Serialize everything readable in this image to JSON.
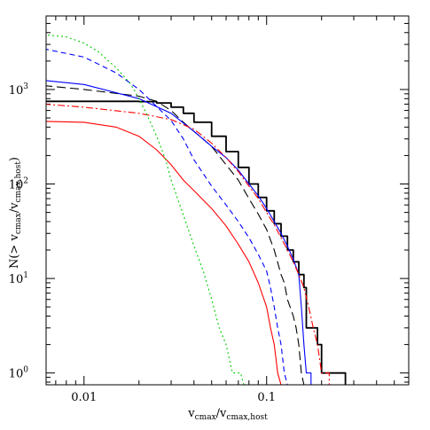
{
  "chart_data": {
    "type": "line",
    "title": "",
    "xscale": "log",
    "yscale": "log",
    "xlim": [
      0.0062,
      0.6
    ],
    "ylim": [
      0.75,
      6000
    ],
    "grid": false,
    "legend": "none",
    "xlabel": {
      "base": "v",
      "base_sub": "cmax",
      "slash": "/",
      "second": "v",
      "second_sub": "cmax,host"
    },
    "ylabel": {
      "prefix": "N(> ",
      "base": "v",
      "base_sub": "cmax",
      "slash": "/",
      "second": "v",
      "second_sub": "cmax,host",
      "suffix": ")"
    },
    "x_ticks": [
      {
        "value": 0.01,
        "label": "0.01"
      },
      {
        "value": 0.1,
        "label": "0.1"
      }
    ],
    "y_ticks": [
      {
        "value": 1,
        "label_base": "10",
        "label_exp": "0"
      },
      {
        "value": 10,
        "label_base": "10",
        "label_exp": "1"
      },
      {
        "value": 100,
        "label_base": "10",
        "label_exp": "2"
      },
      {
        "value": 1000,
        "label_base": "10",
        "label_exp": "3"
      }
    ],
    "series": [
      {
        "color": "#000000",
        "dash": "solid",
        "width": 1.8,
        "step": true,
        "points": [
          [
            0.006,
            750
          ],
          [
            0.01,
            750
          ],
          [
            0.02,
            745
          ],
          [
            0.025,
            720
          ],
          [
            0.03,
            650
          ],
          [
            0.035,
            560
          ],
          [
            0.04,
            450
          ],
          [
            0.05,
            320
          ],
          [
            0.06,
            220
          ],
          [
            0.07,
            150
          ],
          [
            0.08,
            100
          ],
          [
            0.09,
            72
          ],
          [
            0.1,
            52
          ],
          [
            0.11,
            38
          ],
          [
            0.12,
            28
          ],
          [
            0.13,
            20
          ],
          [
            0.14,
            15
          ],
          [
            0.15,
            11
          ],
          [
            0.16,
            8
          ],
          [
            0.165,
            3
          ],
          [
            0.19,
            3
          ],
          [
            0.19,
            2
          ],
          [
            0.2,
            2
          ],
          [
            0.2,
            1
          ],
          [
            0.27,
            1
          ],
          [
            0.27,
            0.75
          ]
        ]
      },
      {
        "color": "#000000",
        "dash": "10,5",
        "width": 1.1,
        "step": false,
        "points": [
          [
            0.006,
            1100
          ],
          [
            0.01,
            1000
          ],
          [
            0.02,
            850
          ],
          [
            0.025,
            750
          ],
          [
            0.03,
            600
          ],
          [
            0.035,
            450
          ],
          [
            0.04,
            360
          ],
          [
            0.05,
            250
          ],
          [
            0.06,
            160
          ],
          [
            0.07,
            110
          ],
          [
            0.08,
            70
          ],
          [
            0.09,
            48
          ],
          [
            0.1,
            33
          ],
          [
            0.11,
            20
          ],
          [
            0.12,
            11
          ],
          [
            0.125,
            9
          ],
          [
            0.13,
            6
          ],
          [
            0.14,
            4
          ],
          [
            0.145,
            3
          ],
          [
            0.15,
            2
          ],
          [
            0.155,
            1
          ],
          [
            0.16,
            0.75
          ]
        ]
      },
      {
        "color": "#0000ff",
        "dash": "solid",
        "width": 1.1,
        "step": false,
        "points": [
          [
            0.006,
            1250
          ],
          [
            0.01,
            1130
          ],
          [
            0.02,
            800
          ],
          [
            0.03,
            560
          ],
          [
            0.04,
            360
          ],
          [
            0.05,
            250
          ],
          [
            0.06,
            190
          ],
          [
            0.07,
            140
          ],
          [
            0.08,
            100
          ],
          [
            0.09,
            75
          ],
          [
            0.1,
            55
          ],
          [
            0.11,
            40
          ],
          [
            0.12,
            30
          ],
          [
            0.13,
            22
          ],
          [
            0.14,
            16
          ],
          [
            0.15,
            11
          ],
          [
            0.155,
            5
          ],
          [
            0.16,
            2
          ],
          [
            0.165,
            1
          ],
          [
            0.175,
            1
          ],
          [
            0.175,
            0.75
          ]
        ]
      },
      {
        "color": "#0000ff",
        "dash": "6,4",
        "width": 1.1,
        "step": false,
        "points": [
          [
            0.006,
            2700
          ],
          [
            0.01,
            2200
          ],
          [
            0.015,
            1500
          ],
          [
            0.02,
            1000
          ],
          [
            0.03,
            470
          ],
          [
            0.035,
            300
          ],
          [
            0.04,
            180
          ],
          [
            0.05,
            95
          ],
          [
            0.06,
            60
          ],
          [
            0.07,
            40
          ],
          [
            0.08,
            27
          ],
          [
            0.09,
            18
          ],
          [
            0.1,
            12
          ],
          [
            0.105,
            8
          ],
          [
            0.11,
            5
          ],
          [
            0.115,
            3
          ],
          [
            0.12,
            2
          ],
          [
            0.125,
            1
          ],
          [
            0.13,
            0.75
          ]
        ]
      },
      {
        "color": "#ff0000",
        "dash": "solid",
        "width": 1.1,
        "step": false,
        "points": [
          [
            0.006,
            460
          ],
          [
            0.01,
            450
          ],
          [
            0.015,
            400
          ],
          [
            0.02,
            320
          ],
          [
            0.025,
            230
          ],
          [
            0.03,
            160
          ],
          [
            0.035,
            110
          ],
          [
            0.04,
            85
          ],
          [
            0.05,
            55
          ],
          [
            0.06,
            36
          ],
          [
            0.07,
            23
          ],
          [
            0.08,
            15
          ],
          [
            0.09,
            9
          ],
          [
            0.1,
            5
          ],
          [
            0.105,
            3
          ],
          [
            0.11,
            2
          ],
          [
            0.115,
            1
          ],
          [
            0.12,
            0.75
          ]
        ]
      },
      {
        "color": "#ff0000",
        "dash": "8,3,2,3",
        "width": 1.1,
        "step": false,
        "points": [
          [
            0.006,
            700
          ],
          [
            0.01,
            650
          ],
          [
            0.02,
            560
          ],
          [
            0.03,
            480
          ],
          [
            0.04,
            380
          ],
          [
            0.05,
            270
          ],
          [
            0.06,
            190
          ],
          [
            0.07,
            135
          ],
          [
            0.08,
            95
          ],
          [
            0.09,
            70
          ],
          [
            0.1,
            50
          ],
          [
            0.11,
            37
          ],
          [
            0.12,
            27
          ],
          [
            0.13,
            20
          ],
          [
            0.14,
            15
          ],
          [
            0.15,
            11
          ],
          [
            0.16,
            8
          ],
          [
            0.17,
            5
          ],
          [
            0.18,
            3
          ],
          [
            0.19,
            2
          ],
          [
            0.2,
            1
          ],
          [
            0.22,
            1
          ],
          [
            0.22,
            0.75
          ]
        ]
      },
      {
        "color": "#00cc00",
        "dash": "2,3",
        "width": 1.1,
        "step": false,
        "points": [
          [
            0.006,
            3800
          ],
          [
            0.008,
            3600
          ],
          [
            0.01,
            3100
          ],
          [
            0.012,
            2500
          ],
          [
            0.015,
            1700
          ],
          [
            0.018,
            1150
          ],
          [
            0.02,
            800
          ],
          [
            0.022,
            550
          ],
          [
            0.025,
            320
          ],
          [
            0.028,
            180
          ],
          [
            0.03,
            110
          ],
          [
            0.033,
            65
          ],
          [
            0.036,
            40
          ],
          [
            0.04,
            22
          ],
          [
            0.045,
            12
          ],
          [
            0.05,
            6
          ],
          [
            0.055,
            3
          ],
          [
            0.06,
            2
          ],
          [
            0.065,
            1
          ],
          [
            0.072,
            1
          ],
          [
            0.075,
            0.75
          ]
        ]
      }
    ]
  }
}
